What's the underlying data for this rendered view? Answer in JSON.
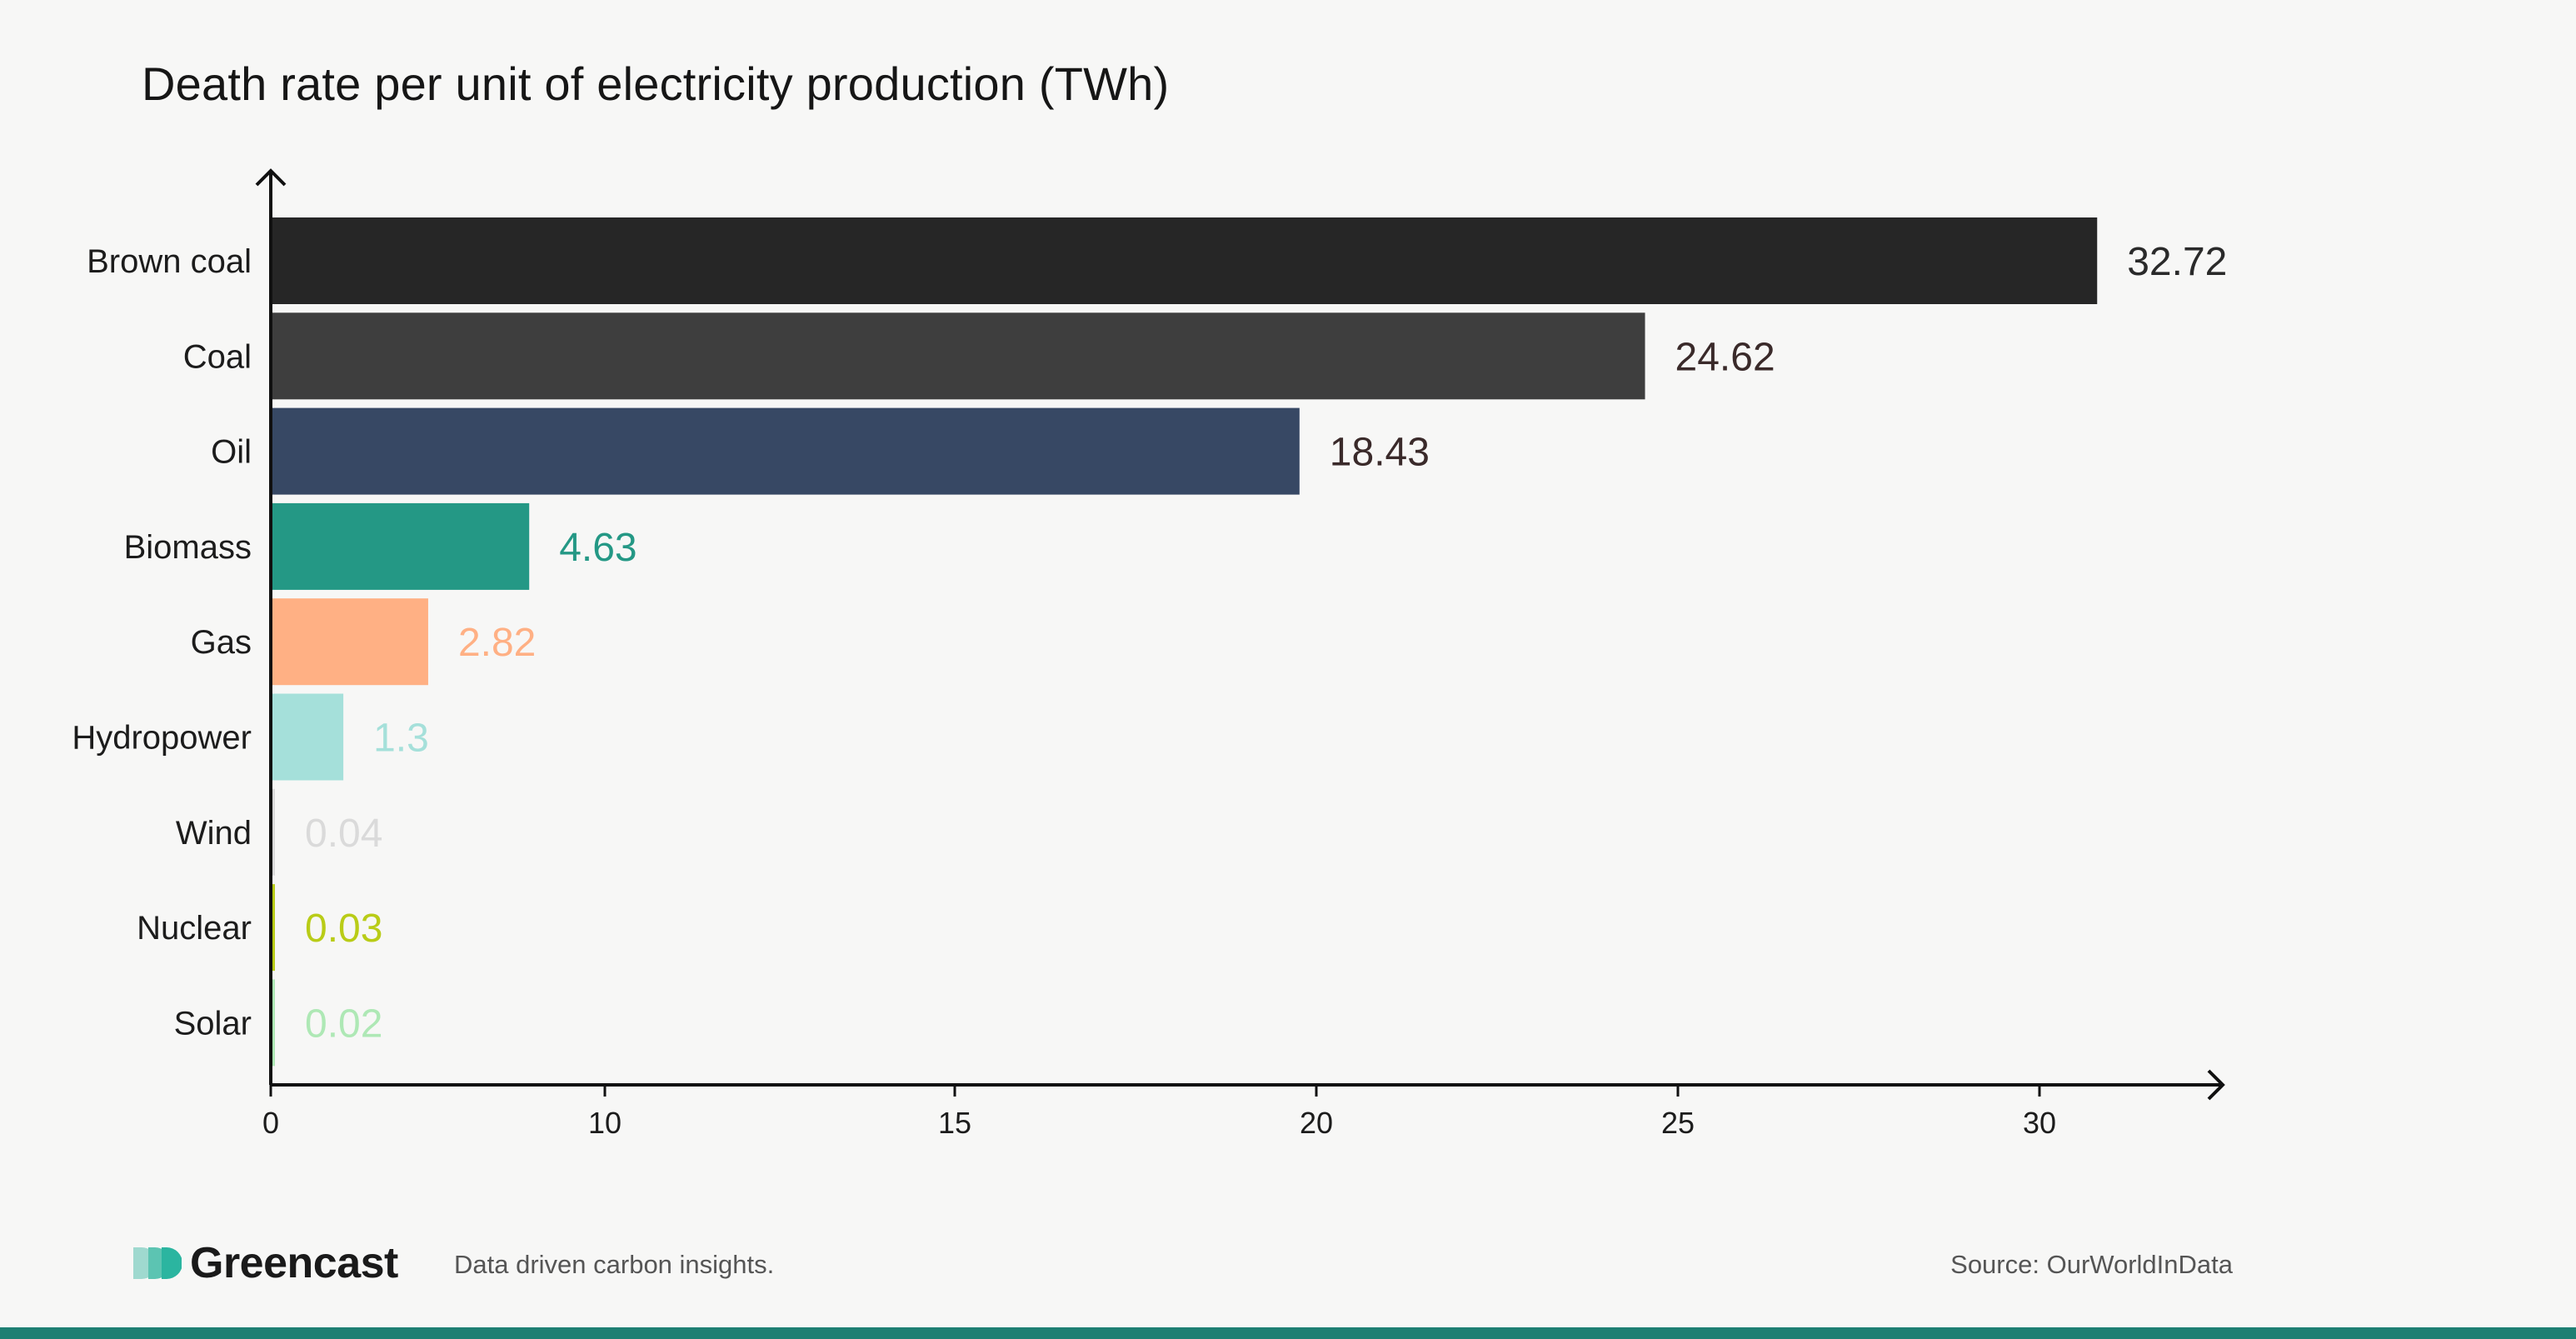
{
  "chart_data": {
    "type": "bar",
    "orientation": "horizontal",
    "title": "Death rate per unit of electricity production (TWh)",
    "xlabel": "",
    "ylabel": "",
    "categories": [
      "Brown coal",
      "Coal",
      "Oil",
      "Biomass",
      "Gas",
      "Hydropower",
      "Wind",
      "Nuclear",
      "Solar"
    ],
    "values": [
      32.72,
      24.62,
      18.43,
      4.63,
      2.82,
      1.3,
      0.04,
      0.03,
      0.02
    ],
    "value_labels": [
      "32.72",
      "24.62",
      "18.43",
      "4.63",
      "2.82",
      "1.3",
      "0.04",
      "0.03",
      "0.02"
    ],
    "bar_colors": [
      "#262626",
      "#3e3e3e",
      "#374864",
      "#249885",
      "#ffb084",
      "#a5e0da",
      "#dadada",
      "#b9cc17",
      "#aee8b5"
    ],
    "label_colors": [
      "#2a2a2a",
      "#3a2a2a",
      "#3a2a2a",
      "#249885",
      "#ffb084",
      "#a5e0da",
      "#dadada",
      "#b9cc17",
      "#aee8b5"
    ],
    "xticks": [
      "0",
      "10",
      "15",
      "20",
      "25",
      "30"
    ],
    "xlim": [
      0,
      33
    ],
    "grid": false,
    "legend": "none"
  },
  "footer": {
    "brand": "Greencast",
    "tagline": "Data driven carbon insights.",
    "source": "Source: OurWorldInData"
  },
  "colors": {
    "background": "#f7f7f6",
    "accent": "#1e7f73",
    "logo": "#2bb5a0"
  }
}
